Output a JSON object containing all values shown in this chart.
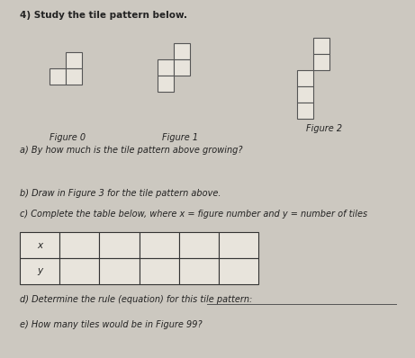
{
  "title": "4) Study the tile pattern below.",
  "bg_color": "#ccc8c0",
  "paper_color": "#e8e4dc",
  "fig_labels": [
    "Figure 0",
    "Figure 1",
    "Figure 2"
  ],
  "question_a": "a) By how much is the tile pattern above growing?",
  "question_b": "b) Draw in Figure 3 for the tile pattern above.",
  "question_c": "c) Complete the table below, where x = figure number and y = number of tiles",
  "question_d": "d) Determine the rule (equation) for this tile pattern:",
  "question_e": "e) How many tiles would be in Figure 99?",
  "tile_color": "#e8e4dc",
  "tile_edge_color": "#555555",
  "row_labels": [
    "x",
    "y"
  ],
  "num_cols": 6,
  "title_fontsize": 7.5,
  "label_fontsize": 7.0,
  "text_fontsize": 7.0
}
